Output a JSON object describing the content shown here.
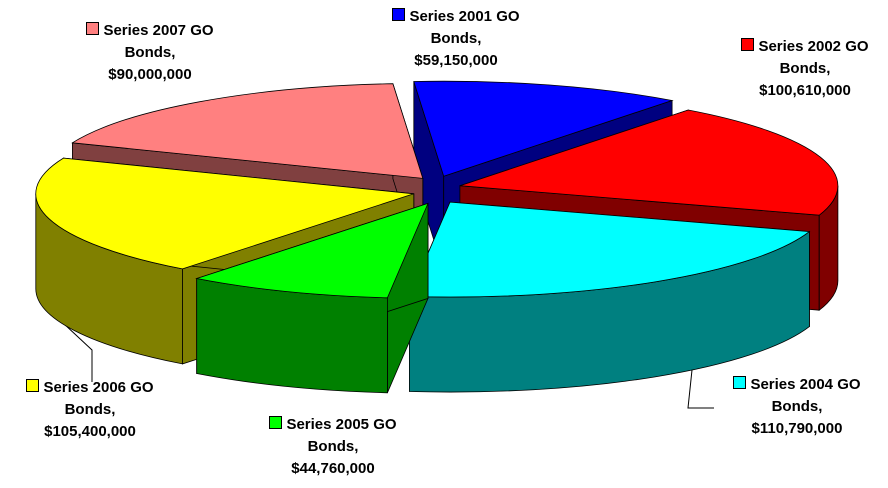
{
  "chart_data": {
    "type": "pie3d",
    "categories": [
      "Series 2001 GO Bonds,",
      "Series 2002 GO Bonds,",
      "Series 2004 GO Bonds,",
      "Series 2005 GO Bonds,",
      "Series 2006 GO Bonds,",
      "Series 2007 GO Bonds,"
    ],
    "values": [
      59150000,
      100610000,
      110790000,
      44760000,
      105400000,
      90000000
    ],
    "value_labels": [
      "$59,150,000",
      "$100,610,000",
      "$110,790,000",
      "$44,760,000",
      "$105,400,000",
      "$90,000,000"
    ],
    "colors": [
      "#0000ff",
      "#ff0000",
      "#00ffff",
      "#00ff00",
      "#ffff00",
      "#ff8080"
    ]
  }
}
